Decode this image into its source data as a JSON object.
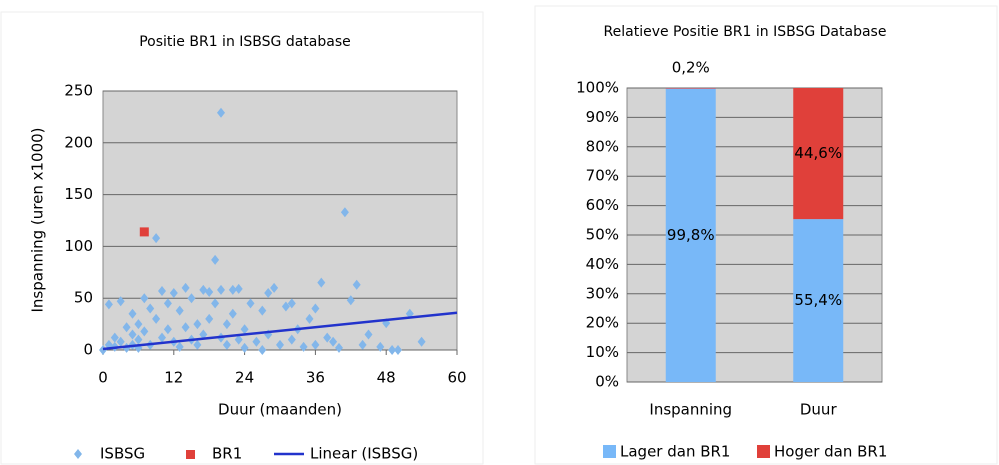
{
  "chart_data": [
    {
      "type": "scatter",
      "title": "Positie BR1 in ISBSG database",
      "x_label": "Duur (maanden)",
      "y_label": "Inspanning (uren x1000)",
      "xlim": [
        0,
        60
      ],
      "xticks": [
        0,
        12,
        24,
        36,
        48,
        60
      ],
      "ylim": [
        0,
        250
      ],
      "yticks": [
        0,
        50,
        100,
        150,
        200,
        250
      ],
      "grid": true,
      "series": [
        {
          "name": "ISBSG",
          "color": "#82b6ea",
          "marker": "diamond",
          "x": [
            0,
            1,
            1,
            2,
            2,
            3,
            3,
            4,
            4,
            5,
            5,
            5,
            6,
            6,
            6,
            7,
            7,
            8,
            8,
            9,
            9,
            10,
            10,
            11,
            11,
            12,
            12,
            13,
            13,
            14,
            14,
            15,
            15,
            16,
            16,
            17,
            17,
            18,
            18,
            19,
            19,
            20,
            20,
            20,
            21,
            21,
            22,
            22,
            23,
            23,
            24,
            24,
            25,
            26,
            27,
            27,
            28,
            28,
            29,
            30,
            31,
            32,
            32,
            33,
            34,
            35,
            36,
            36,
            37,
            38,
            39,
            40,
            41,
            42,
            43,
            44,
            45,
            47,
            48,
            49,
            50,
            52,
            54
          ],
          "values": [
            0,
            5,
            44,
            12,
            3,
            47,
            8,
            22,
            2,
            35,
            15,
            5,
            25,
            10,
            2,
            50,
            18,
            40,
            5,
            108,
            30,
            57,
            12,
            45,
            20,
            55,
            8,
            38,
            3,
            60,
            22,
            50,
            10,
            25,
            5,
            58,
            15,
            56,
            30,
            87,
            45,
            229,
            58,
            12,
            25,
            5,
            58,
            35,
            59,
            10,
            20,
            2,
            45,
            8,
            38,
            0,
            55,
            15,
            60,
            5,
            42,
            45,
            10,
            20,
            3,
            30,
            40,
            5,
            65,
            12,
            8,
            2,
            133,
            48,
            63,
            5,
            15,
            3,
            26,
            0,
            0,
            35,
            8
          ]
        },
        {
          "name": "BR1",
          "color": "#e0403a",
          "marker": "square",
          "x": [
            7
          ],
          "values": [
            114
          ]
        },
        {
          "name": "Linear (ISBSG)",
          "color": "#2233cc",
          "marker": "line",
          "x": [
            0,
            60
          ],
          "values": [
            1,
            36
          ]
        }
      ]
    },
    {
      "type": "stacked_bar",
      "title": "Relatieve Positie BR1 in ISBSG Database",
      "categories": [
        "Inspanning",
        "Duur"
      ],
      "ylim": [
        0,
        100
      ],
      "yticks": [
        {
          "value": 0,
          "label": "0%"
        },
        {
          "value": 10,
          "label": "10%"
        },
        {
          "value": 20,
          "label": "20%"
        },
        {
          "value": 30,
          "label": "30%"
        },
        {
          "value": 40,
          "label": "40%"
        },
        {
          "value": 50,
          "label": "50%"
        },
        {
          "value": 60,
          "label": "60%"
        },
        {
          "value": 70,
          "label": "70%"
        },
        {
          "value": 80,
          "label": "80%"
        },
        {
          "value": 90,
          "label": "90%"
        },
        {
          "value": 100,
          "label": "100%"
        }
      ],
      "grid": true,
      "series": [
        {
          "name": "Lager dan BR1",
          "color": "#78b8f8",
          "values": [
            99.8,
            55.4
          ],
          "value_labels": [
            "99,8%",
            "55,4%"
          ]
        },
        {
          "name": "Hoger dan BR1",
          "color": "#e0403a",
          "values": [
            0.2,
            44.6
          ],
          "value_labels": [
            "0,2%",
            "44,6%"
          ]
        }
      ]
    }
  ]
}
